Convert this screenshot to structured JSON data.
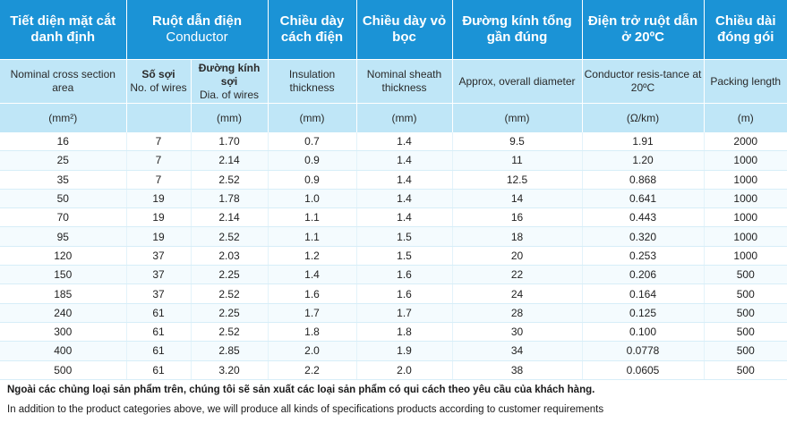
{
  "header": {
    "vi": [
      "Tiết diện mặt cắt danh định",
      "Ruột dẫn điện",
      "Chiều dày cách điện",
      "Chiều dày vỏ bọc",
      "Đường kính tổng gần đúng",
      "Điện trở ruột dẫn ở 20ºC",
      "Chiều dài đóng gói"
    ],
    "conductor_en": "Conductor",
    "en": {
      "cross_section": "Nominal cross section area",
      "wires_vi": "Số sợi",
      "wires_en": "No. of wires",
      "dia_vi": "Đường kính sợi",
      "dia_en": "Dia. of wires",
      "insulation": "Insulation thickness",
      "sheath": "Nominal sheath thickness",
      "diameter": "Approx, overall diameter",
      "resistance": "Conductor resis-tance at 20ºC",
      "packing": "Packing length"
    },
    "units": [
      "(mm²)",
      "",
      "(mm)",
      "(mm)",
      "(mm)",
      "(mm)",
      "(Ω/km)",
      "(m)"
    ]
  },
  "rows": [
    [
      "16",
      "7",
      "1.70",
      "0.7",
      "1.4",
      "9.5",
      "1.91",
      "2000"
    ],
    [
      "25",
      "7",
      "2.14",
      "0.9",
      "1.4",
      "11",
      "1.20",
      "1000"
    ],
    [
      "35",
      "7",
      "2.52",
      "0.9",
      "1.4",
      "12.5",
      "0.868",
      "1000"
    ],
    [
      "50",
      "19",
      "1.78",
      "1.0",
      "1.4",
      "14",
      "0.641",
      "1000"
    ],
    [
      "70",
      "19",
      "2.14",
      "1.1",
      "1.4",
      "16",
      "0.443",
      "1000"
    ],
    [
      "95",
      "19",
      "2.52",
      "1.1",
      "1.5",
      "18",
      "0.320",
      "1000"
    ],
    [
      "120",
      "37",
      "2.03",
      "1.2",
      "1.5",
      "20",
      "0.253",
      "1000"
    ],
    [
      "150",
      "37",
      "2.25",
      "1.4",
      "1.6",
      "22",
      "0.206",
      "500"
    ],
    [
      "185",
      "37",
      "2.52",
      "1.6",
      "1.6",
      "24",
      "0.164",
      "500"
    ],
    [
      "240",
      "61",
      "2.25",
      "1.7",
      "1.7",
      "28",
      "0.125",
      "500"
    ],
    [
      "300",
      "61",
      "2.52",
      "1.8",
      "1.8",
      "30",
      "0.100",
      "500"
    ],
    [
      "400",
      "61",
      "2.85",
      "2.0",
      "1.9",
      "34",
      "0.0778",
      "500"
    ],
    [
      "500",
      "61",
      "3.20",
      "2.2",
      "2.0",
      "38",
      "0.0605",
      "500"
    ]
  ],
  "notes": {
    "vi": "Ngoài các chủng loại sản phẩm trên, chúng tôi sẽ sản xuất các loại sản phẩm có qui cách theo yêu cầu của khách hàng.",
    "en": "In addition to the product categories above, we will produce all kinds of specifications products according to customer requirements"
  },
  "colors": {
    "header_bg": "#1b93d6",
    "subheader_bg": "#bfe6f7",
    "row_alt_bg": "#f4fbfe"
  }
}
